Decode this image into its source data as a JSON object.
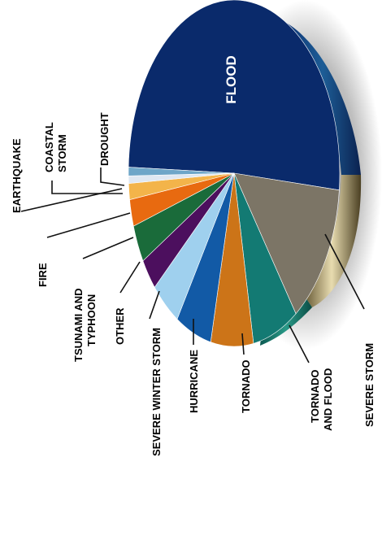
{
  "chart_data": {
    "type": "pie",
    "title": "",
    "slices": [
      {
        "label": "FLOOD",
        "value": 51.0,
        "color": "#0a2a6b"
      },
      {
        "label": "SEVERE STORM",
        "value": 13.5,
        "color": "#7c7566"
      },
      {
        "label": "TORNADO AND FLOOD",
        "value": 7.0,
        "color": "#137a73"
      },
      {
        "label": "TORNADO",
        "value": 6.5,
        "color": "#cc7418"
      },
      {
        "label": "HURRICANE",
        "value": 5.5,
        "color": "#125aa6"
      },
      {
        "label": "SEVERE WINTER STORM",
        "value": 4.5,
        "color": "#9fd0ee"
      },
      {
        "label": "OTHER",
        "value": 3.0,
        "color": "#4c0f5e"
      },
      {
        "label": "TSUNAMI AND TYPHOON",
        "value": 3.5,
        "color": "#1a6b3a"
      },
      {
        "label": "FIRE",
        "value": 2.5,
        "color": "#e86a10"
      },
      {
        "label": "DROUGHT",
        "value": 1.5,
        "color": "#f3b44a"
      },
      {
        "label": "COASTAL STORM",
        "value": 0.7,
        "color": "#dfe8f2"
      },
      {
        "label": "EARTHQUAKE",
        "value": 0.8,
        "color": "#6ea6c8"
      }
    ]
  },
  "labels": {
    "flood": "FLOOD",
    "earthquake": "EARTHQUAKE",
    "coastal_1": "COASTAL",
    "coastal_2": "STORM",
    "drought": "DROUGHT",
    "fire": "FIRE",
    "tsunami_1": "TSUNAMI AND",
    "tsunami_2": "TYPHOON",
    "other": "OTHER",
    "winter": "SEVERE WINTER STORM",
    "hurricane": "HURRICANE",
    "tornado": "TORNADO",
    "tf_1": "TORNADO",
    "tf_2": "AND FLOOD",
    "severe_storm": "SEVERE STORM"
  }
}
